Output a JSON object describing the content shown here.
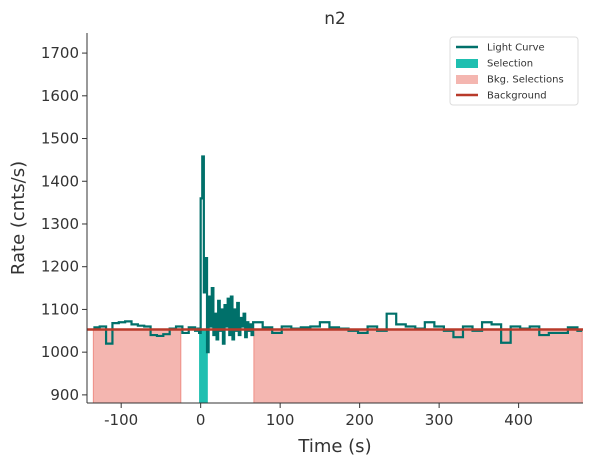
{
  "chart_data": {
    "type": "step",
    "title": "n2",
    "xlabel": "Time (s)",
    "ylabel": "Rate (cnts/s)",
    "xlim": [
      -143,
      481
    ],
    "ylim": [
      881,
      1747
    ],
    "xticks": [
      -100,
      0,
      100,
      200,
      300,
      400
    ],
    "yticks": [
      900,
      1000,
      1100,
      1200,
      1300,
      1400,
      1500,
      1600,
      1700
    ],
    "x": [
      -135,
      -127,
      -119,
      -111,
      -103,
      -95,
      -87,
      -79,
      -71,
      -63,
      -55,
      -47,
      -39,
      -31,
      -23,
      -15,
      -7,
      -4,
      -2,
      0,
      2,
      4,
      6,
      8,
      10,
      12,
      14,
      16,
      18,
      20,
      22,
      24,
      26,
      28,
      30,
      32,
      34,
      36,
      38,
      40,
      42,
      44,
      46,
      48,
      50,
      52,
      54,
      56,
      58,
      60,
      62,
      64,
      66,
      78,
      90,
      102,
      114,
      126,
      138,
      150,
      162,
      174,
      186,
      198,
      210,
      222,
      234,
      246,
      258,
      270,
      282,
      294,
      306,
      318,
      330,
      342,
      354,
      366,
      378,
      390,
      402,
      414,
      426,
      438,
      450,
      462,
      474,
      480
    ],
    "series": [
      {
        "name": "Light Curve",
        "color": "#00706a",
        "values": [
          1058,
          1060,
          1020,
          1068,
          1070,
          1072,
          1065,
          1062,
          1060,
          1040,
          1038,
          1042,
          1055,
          1060,
          1045,
          1058,
          1050,
          1055,
          1045,
          1360,
          1458,
          1140,
          1220,
          1000,
          1130,
          1060,
          1150,
          1040,
          1090,
          1030,
          1120,
          1050,
          1100,
          1020,
          1110,
          1060,
          1125,
          1040,
          1130,
          1030,
          1100,
          1050,
          1115,
          1040,
          1080,
          1060,
          1090,
          1035,
          1070,
          1050,
          1065,
          1040,
          1070,
          1058,
          1045,
          1060,
          1055,
          1058,
          1060,
          1070,
          1058,
          1055,
          1050,
          1045,
          1060,
          1050,
          1090,
          1065,
          1060,
          1055,
          1070,
          1060,
          1050,
          1035,
          1060,
          1050,
          1070,
          1065,
          1022,
          1060,
          1055,
          1060,
          1040,
          1045,
          1045,
          1058,
          1050,
          1050
        ]
      },
      {
        "name": "Selection",
        "color": "#1fbfb0",
        "intervals": [
          [
            -2,
            9
          ]
        ]
      },
      {
        "name": "Bkg. Selections",
        "color": "#f4b6b0",
        "intervals": [
          [
            -135,
            -25
          ],
          [
            67,
            480
          ]
        ]
      },
      {
        "name": "Background",
        "color": "#b83a2a",
        "value": 1053
      }
    ]
  }
}
